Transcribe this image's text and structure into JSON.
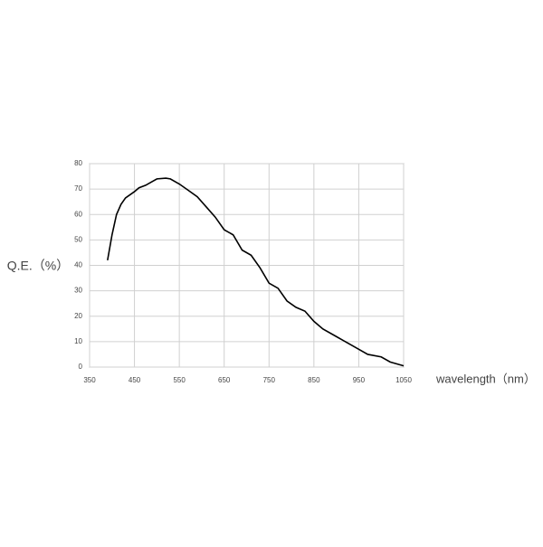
{
  "chart_data": {
    "type": "line",
    "x_label": "wavelength（nm）",
    "y_label": "Q.E.（%）",
    "xlim": [
      350,
      1050
    ],
    "xticks": [
      350,
      450,
      550,
      650,
      750,
      850,
      950,
      1050
    ],
    "ylim": [
      0,
      80
    ],
    "yticks": [
      0,
      10,
      20,
      30,
      40,
      50,
      60,
      70,
      80
    ],
    "grid": true,
    "x": [
      390,
      400,
      410,
      420,
      430,
      450,
      460,
      475,
      490,
      500,
      520,
      530,
      550,
      570,
      590,
      610,
      630,
      650,
      670,
      690,
      710,
      730,
      750,
      770,
      790,
      810,
      830,
      850,
      870,
      900,
      930,
      950,
      970,
      1000,
      1020,
      1050
    ],
    "series": [
      {
        "color": "#000000",
        "values": [
          42,
          52,
          60,
          64,
          66.5,
          69,
          70.5,
          71.5,
          73,
          74,
          74.3,
          74,
          72,
          69.5,
          67,
          63,
          59,
          54,
          52,
          46,
          44,
          39,
          33,
          31,
          26,
          23.5,
          22,
          18,
          15,
          12,
          9,
          7,
          5,
          4,
          2,
          0.5
        ]
      }
    ]
  }
}
